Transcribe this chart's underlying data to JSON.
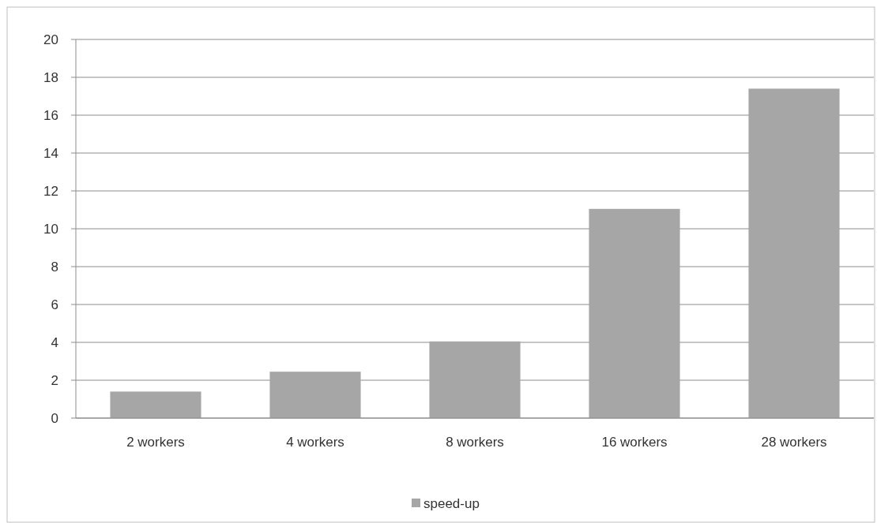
{
  "chart_data": {
    "type": "bar",
    "categories": [
      "2 workers",
      "4 workers",
      "8 workers",
      "16 workers",
      "28 workers"
    ],
    "series": [
      {
        "name": "speed-up",
        "color": "#a6a6a6",
        "values": [
          1.4,
          2.45,
          4.05,
          11.05,
          17.4
        ]
      }
    ],
    "ylim": [
      0,
      20
    ],
    "yticks": [
      0,
      2,
      4,
      6,
      8,
      10,
      12,
      14,
      16,
      18,
      20
    ],
    "grid": "y",
    "legend": "bottom"
  }
}
